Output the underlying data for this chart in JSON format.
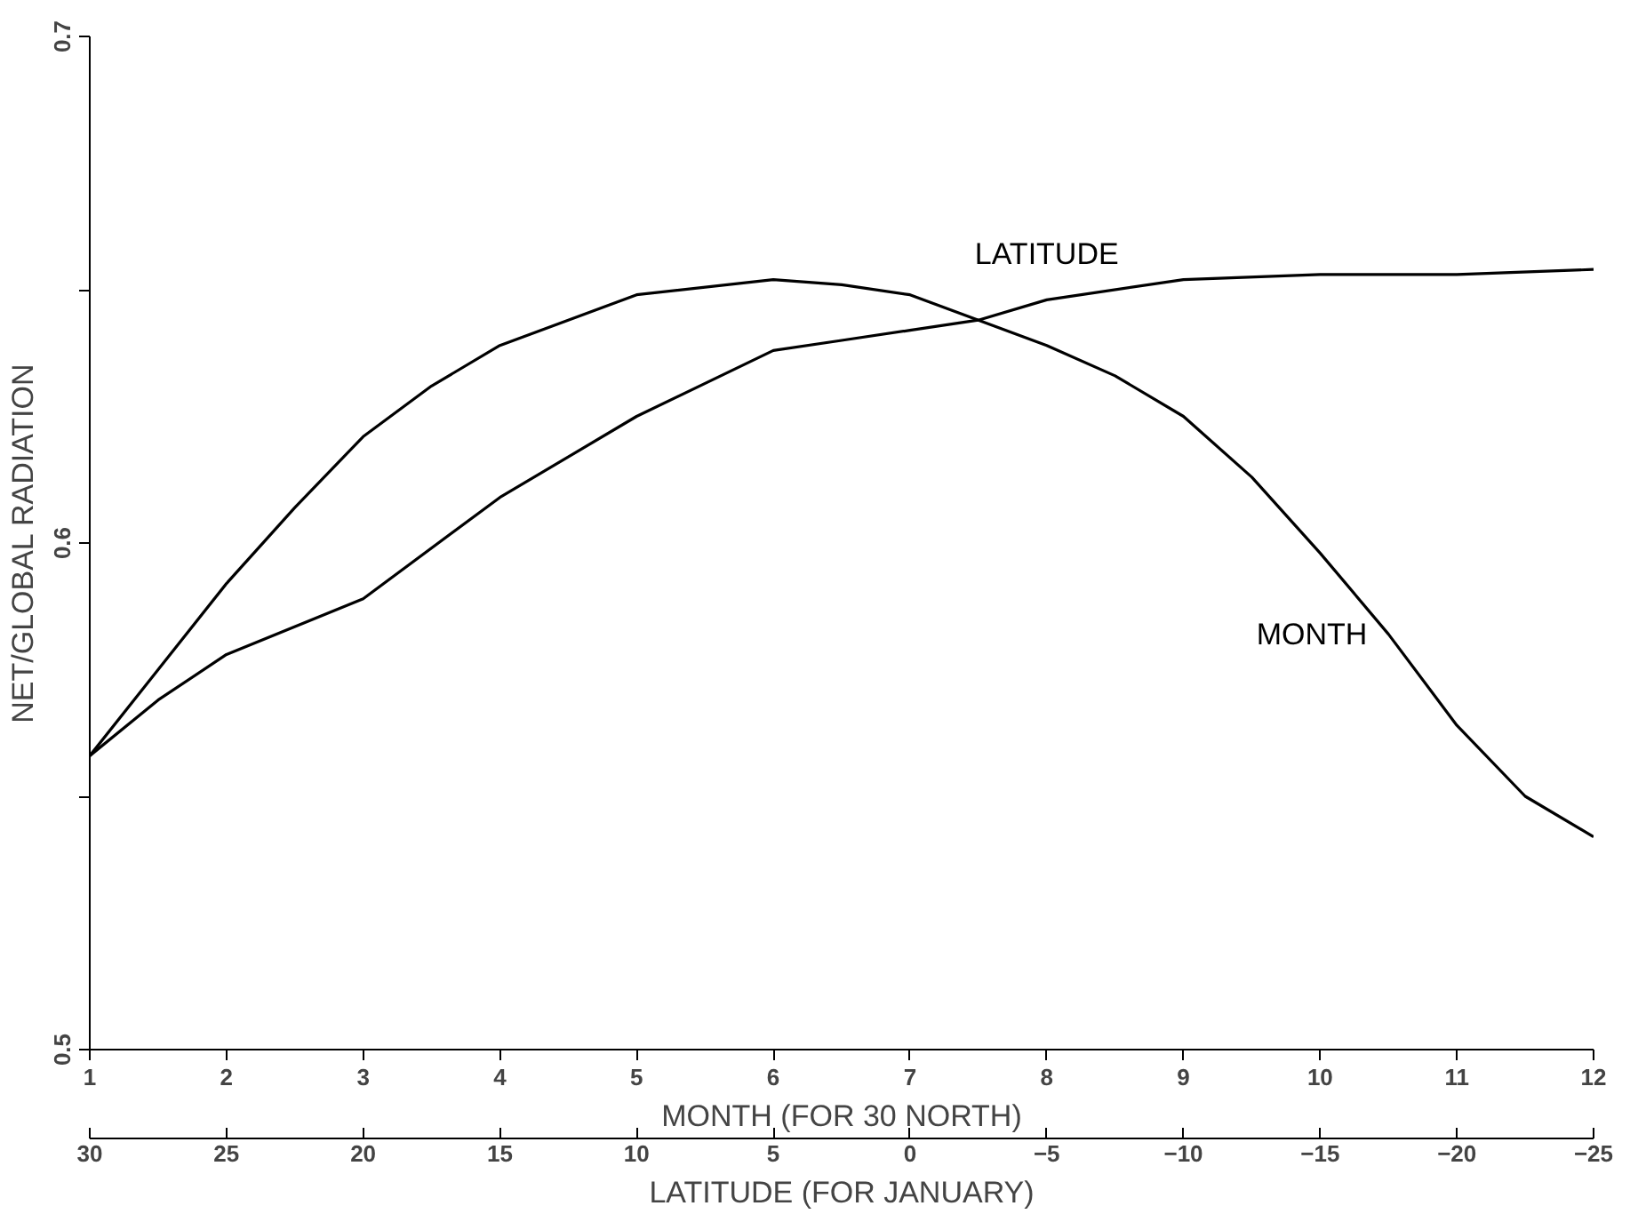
{
  "chart_data": {
    "type": "line",
    "xlabel": "MONTH (FOR 30 NORTH)",
    "ylabel": "NET/GLOBAL RADIATION",
    "x2label": "LATITUDE (FOR JANUARY)",
    "xlim": [
      1,
      12
    ],
    "xticks": [
      1,
      2,
      3,
      4,
      5,
      6,
      7,
      8,
      9,
      10,
      11,
      12
    ],
    "x2lim": [
      30,
      -25
    ],
    "x2ticks": [
      30,
      25,
      20,
      15,
      10,
      5,
      0,
      {
        "value": -5,
        "label": "−5"
      },
      {
        "value": -10,
        "label": "−10"
      },
      {
        "value": -15,
        "label": "−15"
      },
      {
        "value": -20,
        "label": "−20"
      },
      {
        "value": -25,
        "label": "−25"
      }
    ],
    "ylim": [
      0.5,
      0.7
    ],
    "yticks": [
      0.5,
      {
        "value": 0.55,
        "label": null
      },
      0.6,
      {
        "value": 0.65,
        "label": null
      },
      0.7
    ],
    "grid": false,
    "legend": false,
    "marker": "none",
    "line_style": "solid",
    "series": [
      {
        "name": "LATITUDE",
        "color": "#000000",
        "x": [
          1,
          1.5,
          2,
          3,
          4,
          5,
          6,
          6.5,
          7,
          7.5,
          8,
          9,
          10,
          11,
          12
        ],
        "values": [
          0.558,
          0.569,
          0.578,
          0.589,
          0.609,
          0.625,
          0.638,
          0.64,
          0.642,
          0.644,
          0.648,
          0.652,
          0.653,
          0.653,
          0.654
        ]
      },
      {
        "name": "MONTH",
        "color": "#000000",
        "x": [
          1,
          1.5,
          2,
          2.5,
          3,
          3.5,
          4,
          5,
          6,
          6.5,
          7,
          7.5,
          8,
          8.5,
          9,
          9.5,
          10,
          10.5,
          11,
          11.5,
          12
        ],
        "values": [
          0.558,
          0.575,
          0.592,
          0.607,
          0.621,
          0.631,
          0.639,
          0.649,
          0.652,
          0.651,
          0.649,
          0.644,
          0.639,
          0.633,
          0.625,
          0.613,
          0.598,
          0.582,
          0.564,
          0.55,
          0.542
        ]
      }
    ]
  }
}
